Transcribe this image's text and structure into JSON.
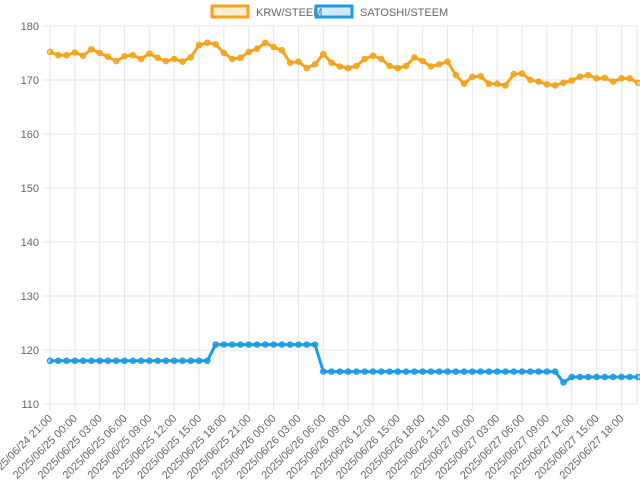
{
  "chart_data": {
    "type": "line",
    "title": "",
    "xlabel": "",
    "ylabel": "",
    "ylim": [
      110,
      180
    ],
    "y_ticks": [
      110,
      120,
      130,
      140,
      150,
      160,
      170,
      180
    ],
    "grid": true,
    "legend_position": "top",
    "x_tick_labels": [
      "2025/06/24 21:00",
      "2025/06/25 00:00",
      "2025/06/25 03:00",
      "2025/06/25 06:00",
      "2025/06/25 09:00",
      "2025/06/25 12:00",
      "2025/06/25 15:00",
      "2025/06/25 18:00",
      "2025/06/25 21:00",
      "2025/06/26 00:00",
      "2025/06/26 03:00",
      "2025/06/26 06:00",
      "2025/06/26 09:00",
      "2025/06/26 12:00",
      "2025/06/26 15:00",
      "2025/06/26 18:00",
      "2025/06/26 21:00",
      "2025/06/27 00:00",
      "2025/06/27 03:00",
      "2025/06/27 06:00",
      "2025/06/27 09:00",
      "2025/06/27 12:00",
      "2025/06/27 15:00",
      "2025/06/27 18:00"
    ],
    "series": [
      {
        "name": "KRW/STEEM",
        "color": "#f5a31a",
        "fill": "rgba(245,163,26,0.2)",
        "values": [
          175.2,
          174.6,
          174.6,
          175.1,
          174.5,
          175.7,
          175.0,
          174.3,
          173.5,
          174.4,
          174.6,
          173.9,
          174.9,
          174.1,
          173.5,
          173.9,
          173.4,
          174.2,
          176.5,
          176.9,
          176.6,
          175.0,
          173.9,
          174.1,
          175.2,
          175.8,
          176.9,
          176.1,
          175.5,
          173.2,
          173.4,
          172.2,
          172.9,
          174.8,
          173.2,
          172.5,
          172.2,
          172.6,
          173.9,
          174.5,
          173.9,
          172.6,
          172.2,
          172.6,
          174.2,
          173.5,
          172.5,
          172.9,
          173.4,
          170.9,
          169.3,
          170.6,
          170.7,
          169.3,
          169.3,
          169.0,
          171.1,
          171.2,
          170.0,
          169.7,
          169.2,
          169.0,
          169.5,
          169.9,
          170.6,
          170.9,
          170.3,
          170.4,
          169.7,
          170.3,
          170.3,
          169.5
        ]
      },
      {
        "name": "SATOSHI/STEEM",
        "color": "#1a9be8",
        "fill": "rgba(26,155,232,0.2)",
        "values": [
          118,
          118,
          118,
          118,
          118,
          118,
          118,
          118,
          118,
          118,
          118,
          118,
          118,
          118,
          118,
          118,
          118,
          118,
          118,
          118,
          121,
          121,
          121,
          121,
          121,
          121,
          121,
          121,
          121,
          121,
          121,
          121,
          121,
          116,
          116,
          116,
          116,
          116,
          116,
          116,
          116,
          116,
          116,
          116,
          116,
          116,
          116,
          116,
          116,
          116,
          116,
          116,
          116,
          116,
          116,
          116,
          116,
          116,
          116,
          116,
          116,
          116,
          114,
          115,
          115,
          115,
          115,
          115,
          115,
          115,
          115,
          115
        ]
      }
    ]
  }
}
